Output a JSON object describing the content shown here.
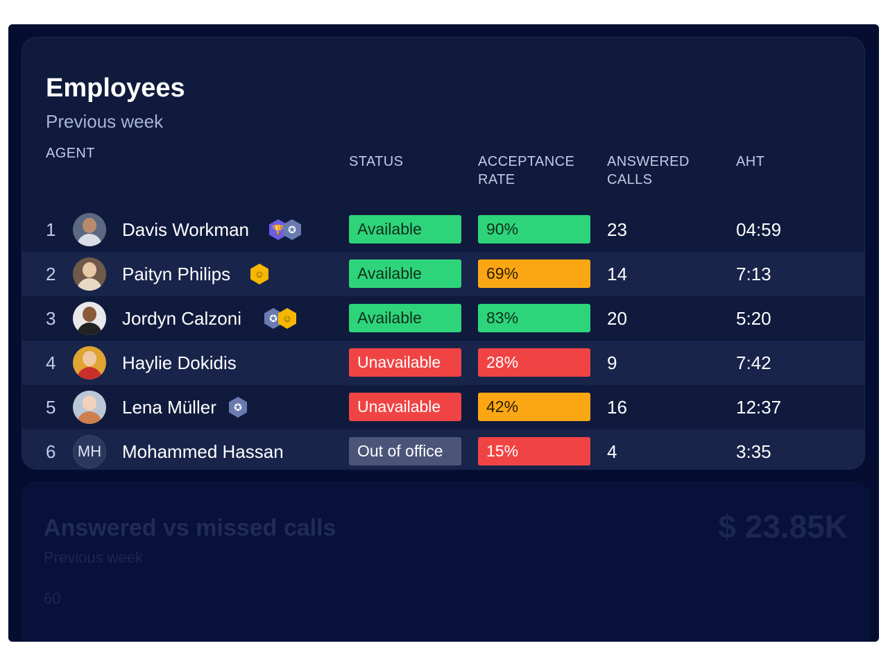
{
  "employees": {
    "title": "Employees",
    "subtitle": "Previous week",
    "headers": {
      "agent": "AGENT",
      "status": "STATUS",
      "acceptance": "ACCEPTANCE RATE",
      "answered": "ANSWERED CALLS",
      "aht": "AHT"
    },
    "rows": [
      {
        "rank": "1",
        "name": "Davis Workman",
        "status": "Available",
        "acceptance": "90%",
        "answered": "23",
        "aht": "04:59"
      },
      {
        "rank": "2",
        "name": "Paityn Philips",
        "status": "Available",
        "acceptance": "69%",
        "answered": "14",
        "aht": "7:13"
      },
      {
        "rank": "3",
        "name": "Jordyn Calzoni",
        "status": "Available",
        "acceptance": "83%",
        "answered": "20",
        "aht": "5:20"
      },
      {
        "rank": "4",
        "name": "Haylie Dokidis",
        "status": "Unavailable",
        "acceptance": "28%",
        "answered": "9",
        "aht": "7:42"
      },
      {
        "rank": "5",
        "name": "Lena Müller",
        "status": "Unavailable",
        "acceptance": "42%",
        "answered": "16",
        "aht": "12:37"
      },
      {
        "rank": "6",
        "name": "Mohammed Hassan",
        "initials": "MH",
        "status": "Out of office",
        "acceptance": "15%",
        "answered": "4",
        "aht": "3:35"
      }
    ]
  },
  "calls_card": {
    "title": "Answered vs missed calls",
    "subtitle": "Previous week",
    "amount": "$ 23.85K",
    "axis_tick": "60"
  },
  "colors": {
    "available": "#2ed47a",
    "unavailable": "#f04444",
    "out_of_office": "#4a5578",
    "rate_high": "#2ed47a",
    "rate_mid": "#fba714",
    "rate_low": "#f04444",
    "badge_trophy": "#6d5ce6",
    "badge_ribbon": "#6a7bb0",
    "badge_smile": "#f5b700"
  },
  "icons": [
    "trophy-badge-icon",
    "ribbon-badge-icon",
    "smile-badge-icon"
  ]
}
